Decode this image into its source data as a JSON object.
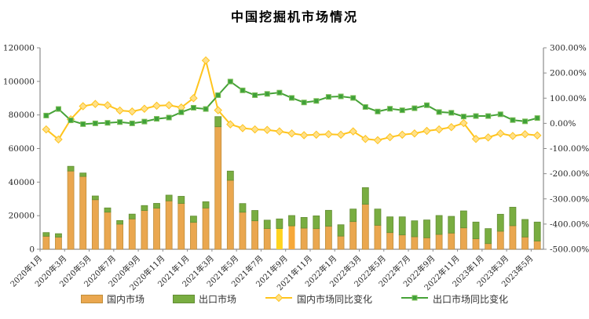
{
  "title": "中国挖掘机市场情况",
  "legend": {
    "items": [
      {
        "label": "国内市场",
        "type": "bar",
        "color": "#EAA74F",
        "border": "#C18F3B"
      },
      {
        "label": "出口市场",
        "type": "bar",
        "color": "#79AD41",
        "border": "#638E35"
      },
      {
        "label": "国内市场同比变化",
        "type": "line",
        "color": "#FFC41D",
        "marker": "diamond"
      },
      {
        "label": "出口市场同比变化",
        "type": "line",
        "color": "#46A238",
        "marker": "square"
      }
    ]
  },
  "colors": {
    "domestic_bar": "#EAA74F",
    "domestic_bar_border": "#C18F3B",
    "export_bar": "#79AD41",
    "export_bar_border": "#638E35",
    "highlight_yellow_bar": "#FFD31C",
    "highlight_orange_bar": "#F6A83A",
    "domestic_line": "#FFC41D",
    "domestic_marker_fill": "#FFE08A",
    "export_line": "#46A238",
    "export_marker_fill": "#3FA139",
    "export_marker_edge": "#7CBE57",
    "axis": "#8C8C8C",
    "tick_text": "#262626"
  },
  "chart_data": {
    "type": "combo-bar-line",
    "title": "中国挖掘机市场情况",
    "categories": [
      "2020年1月",
      "2020年2月",
      "2020年3月",
      "2020年4月",
      "2020年5月",
      "2020年6月",
      "2020年7月",
      "2020年8月",
      "2020年9月",
      "2020年10月",
      "2020年11月",
      "2020年12月",
      "2021年1月",
      "2021年2月",
      "2021年3月",
      "2021年4月",
      "2021年5月",
      "2021年6月",
      "2021年7月",
      "2021年8月",
      "2021年9月",
      "2021年10月",
      "2021年11月",
      "2021年12月",
      "2022年1月",
      "2022年2月",
      "2022年3月",
      "2022年4月",
      "2022年5月",
      "2022年6月",
      "2022年7月",
      "2022年8月",
      "2022年9月",
      "2022年10月",
      "2022年11月",
      "2022年12月",
      "2023年1月",
      "2023年2月",
      "2023年3月",
      "2023年4月",
      "2023年5月"
    ],
    "x_tick_labels": [
      "2020年1月",
      "2020年3月",
      "2020年5月",
      "2020年7月",
      "2020年9月",
      "2020年11月",
      "2021年1月",
      "2021年3月",
      "2021年5月",
      "2021年7月",
      "2021年9月",
      "2021年11月",
      "2022年1月",
      "2022年3月",
      "2022年5月",
      "2022年7月",
      "2022年9月",
      "2022年11月",
      "2023年1月",
      "2023年3月",
      "2023年5月"
    ],
    "series": [
      {
        "name": "国内市场",
        "type": "bar",
        "stacked": true,
        "axis": "left",
        "values": [
          7758,
          7210,
          46610,
          43371,
          29521,
          22100,
          14963,
          18076,
          23110,
          24484,
          28833,
          27319,
          16026,
          24562,
          72977,
          41100,
          22070,
          16965,
          12329,
          12348,
          13934,
          12608,
          12300,
          13700,
          7850,
          16500,
          26800,
          14300,
          9950,
          8550,
          7450,
          6850,
          8850,
          9650,
          12750,
          6250,
          3400,
          10750,
          14050,
          7300,
          4900
        ]
      },
      {
        "name": "出口市场",
        "type": "bar",
        "stacked": true,
        "axis": "left",
        "values": [
          2184,
          2070,
          2798,
          2055,
          2223,
          2525,
          2147,
          2863,
          2924,
          2847,
          3403,
          4211,
          3725,
          3743,
          6058,
          5472,
          5150,
          6135,
          5016,
          5727,
          6151,
          6356,
          7600,
          9500,
          6750,
          7450,
          9900,
          9650,
          9350,
          10750,
          9500,
          10600,
          11250,
          9950,
          10100,
          9950,
          8900,
          10100,
          11000,
          10450,
          11300
        ]
      },
      {
        "name": "国内市场同比变化",
        "type": "line",
        "axis": "right",
        "unit": "%",
        "values": [
          -24,
          -64,
          16,
          68,
          77,
          72,
          51,
          47,
          58,
          70,
          72,
          63,
          100,
          250,
          52,
          -4,
          -19,
          -24,
          -26,
          -32,
          -40,
          -47,
          -45,
          -43,
          -45,
          -32,
          -62,
          -67,
          -55,
          -45,
          -40,
          -30,
          -24,
          -15,
          1,
          -62,
          -56,
          -40,
          -50,
          -43,
          -48
        ]
      },
      {
        "name": "出口市场同比变化",
        "type": "line",
        "axis": "right",
        "unit": "%",
        "values": [
          31,
          57,
          12,
          -3,
          0,
          2,
          5,
          0,
          7,
          18,
          23,
          44,
          62,
          57,
          112,
          166,
          131,
          112,
          117,
          122,
          101,
          83,
          89,
          105,
          107,
          101,
          65,
          47,
          58,
          52,
          60,
          72,
          45,
          42,
          27,
          29,
          29,
          36,
          13,
          8,
          21
        ]
      }
    ],
    "highlight_bars": [
      {
        "category": "2021年8月",
        "index": 19,
        "color": "#FFD31C"
      },
      {
        "category": "2021年9月",
        "index": 20,
        "color": "#F6A83A"
      }
    ],
    "left_axis": {
      "min": 0,
      "max": 120000,
      "step": 20000,
      "tick_labels": [
        "0",
        "20000",
        "40000",
        "60000",
        "80000",
        "100000",
        "120000"
      ]
    },
    "right_axis": {
      "min": -500,
      "max": 300,
      "step": 100,
      "tick_labels": [
        "300.00%",
        "200.00%",
        "100.00%",
        "0.00%",
        "-100.00%",
        "-200.00%",
        "-300.00%",
        "-400.00%",
        "-500.00%"
      ]
    },
    "grid": false,
    "legend_position": "bottom"
  }
}
